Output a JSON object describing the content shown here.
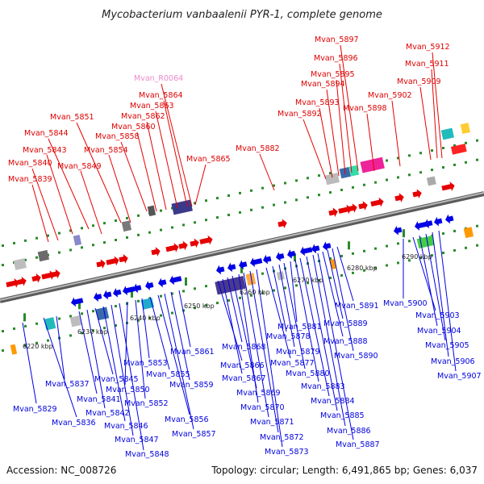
{
  "title": "Mycobacterium vanbaalenii PYR-1, complete genome",
  "footer": {
    "accession": "Accession: NC_008726",
    "stats": "Topology: circular; Length: 6,491,865 bp; Genes: 6,037"
  },
  "colors": {
    "forward": "#e60000",
    "reverse": "#0000e6",
    "rna": "#ee88cc",
    "backbone": "#888888",
    "tick": "#2a8a2a"
  },
  "ticks": [
    "6220 kbp",
    "6230 kbp",
    "6240 kbp",
    "6250 kbp",
    "6260 kbp",
    "6270 kbp",
    "6280 kbp",
    "6290 kbp"
  ],
  "labels_top": [
    "Mvan_5839",
    "Mvan_5840",
    "Mvan_5843",
    "Mvan_5844",
    "Mvan_5849",
    "Mvan_5851",
    "Mvan_5854",
    "Mvan_5858",
    "Mvan_5860",
    "Mvan_5862",
    "Mvan_5863",
    "Mvan_5864",
    "Mvan_R0064",
    "Mvan_5865",
    "Mvan_5882",
    "Mvan_5892",
    "Mvan_5893",
    "Mvan_5894",
    "Mvan_5895",
    "Mvan_5896",
    "Mvan_5897",
    "Mvan_5898",
    "Mvan_5902",
    "Mvan_5909",
    "Mvan_5911",
    "Mvan_5912"
  ],
  "labels_bottom": [
    "Mvan_5829",
    "Mvan_5836",
    "Mvan_5837",
    "Mvan_5841",
    "Mvan_5842",
    "Mvan_5845",
    "Mvan_5846",
    "Mvan_5847",
    "Mvan_5848",
    "Mvan_5850",
    "Mvan_5852",
    "Mvan_5853",
    "Mvan_5855",
    "Mvan_5856",
    "Mvan_5857",
    "Mvan_5859",
    "Mvan_5861",
    "Mvan_5866",
    "Mvan_5867",
    "Mvan_5868",
    "Mvan_5869",
    "Mvan_5870",
    "Mvan_5871",
    "Mvan_5872",
    "Mvan_5873",
    "Mvan_5877",
    "Mvan_5878",
    "Mvan_5879",
    "Mvan_5880",
    "Mvan_5881",
    "Mvan_5883",
    "Mvan_5884",
    "Mvan_5885",
    "Mvan_5886",
    "Mvan_5887",
    "Mvan_5888",
    "Mvan_5889",
    "Mvan_5890",
    "Mvan_5891",
    "Mvan_5900",
    "Mvan_5903",
    "Mvan_5904",
    "Mvan_5905",
    "Mvan_5906",
    "Mvan_5907"
  ]
}
